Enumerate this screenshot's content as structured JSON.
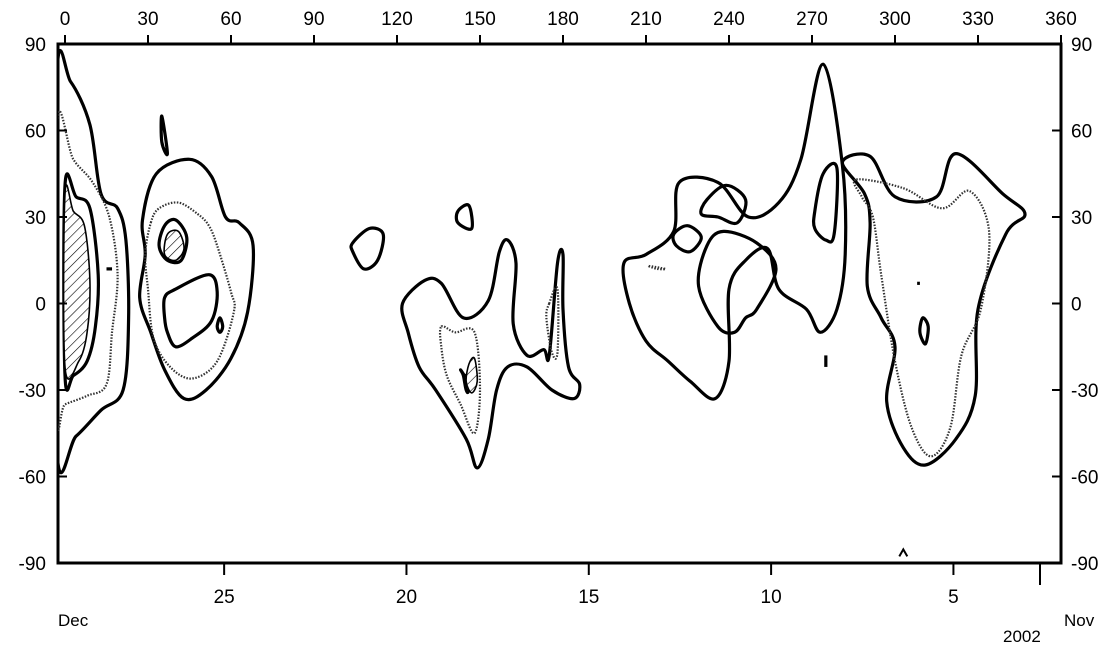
{
  "chart_data": {
    "type": "contour",
    "title": "",
    "xlabel": "",
    "ylabel": "",
    "top_axis": {
      "range": [
        0,
        360
      ],
      "ticks": [
        "0",
        "30",
        "60",
        "90",
        "120",
        "150",
        "180",
        "210",
        "240",
        "270",
        "300",
        "330",
        "360"
      ]
    },
    "left_axis": {
      "range": [
        -90,
        90
      ],
      "ticks": [
        "90",
        "60",
        "30",
        "0",
        "-30",
        "-60",
        "-90"
      ]
    },
    "right_axis": {
      "range": [
        -90,
        90
      ],
      "ticks": [
        "90",
        "60",
        "30",
        "0",
        "-30",
        "-60",
        "-90"
      ]
    },
    "bottom_axis": {
      "ticks": [
        "25",
        "20",
        "15",
        "10",
        "5"
      ],
      "left_label": "Dec",
      "right_label": "Nov",
      "year_label": "2002"
    },
    "grid": false,
    "contours": [
      {
        "id": "c1",
        "style": "solid",
        "points": [
          [
            -3,
            78
          ],
          [
            2,
            77
          ],
          [
            9,
            62
          ],
          [
            13,
            38
          ],
          [
            19,
            33
          ],
          [
            22,
            22
          ],
          [
            23,
            -5
          ],
          [
            21,
            -30
          ],
          [
            13,
            -37
          ],
          [
            4,
            -46
          ],
          [
            -3,
            -50
          ]
        ]
      },
      {
        "id": "c2",
        "style": "dotted",
        "points": [
          [
            -3,
            62
          ],
          [
            3,
            50
          ],
          [
            10,
            42
          ],
          [
            16,
            30
          ],
          [
            19,
            10
          ],
          [
            17,
            -10
          ],
          [
            15,
            -28
          ],
          [
            8,
            -32
          ],
          [
            0,
            -35
          ],
          [
            -3,
            -37
          ]
        ]
      },
      {
        "id": "c3",
        "style": "solid",
        "points": [
          [
            0,
            41
          ],
          [
            4,
            37
          ],
          [
            9,
            33
          ],
          [
            12,
            10
          ],
          [
            11,
            -8
          ],
          [
            8,
            -20
          ],
          [
            3,
            -25
          ],
          [
            0,
            -25
          ]
        ]
      },
      {
        "id": "c4",
        "style": "hatch",
        "points": [
          [
            0,
            38
          ],
          [
            3,
            32
          ],
          [
            7,
            27
          ],
          [
            9,
            8
          ],
          [
            8,
            -10
          ],
          [
            5,
            -20
          ],
          [
            0,
            -22
          ]
        ]
      },
      {
        "id": "c5",
        "style": "solid",
        "points": [
          [
            15,
            12
          ],
          [
            17,
            12
          ]
        ]
      },
      {
        "id": "c6",
        "style": "solid",
        "points": [
          [
            35,
            56
          ],
          [
            37,
            52
          ],
          [
            35,
            65
          ]
        ]
      },
      {
        "id": "c7",
        "style": "solid",
        "points": [
          [
            28,
            29
          ],
          [
            33,
            45
          ],
          [
            45,
            50
          ],
          [
            53,
            44
          ],
          [
            58,
            30
          ],
          [
            63,
            28
          ],
          [
            68,
            20
          ],
          [
            66,
            -3
          ],
          [
            60,
            -19
          ],
          [
            51,
            -30
          ],
          [
            43,
            -33
          ],
          [
            36,
            -23
          ],
          [
            31,
            -10
          ],
          [
            27,
            2
          ],
          [
            29,
            17
          ]
        ]
      },
      {
        "id": "c8",
        "style": "dotted",
        "points": [
          [
            31,
            28
          ],
          [
            34,
            33
          ],
          [
            41,
            35
          ],
          [
            48,
            31
          ],
          [
            52,
            27
          ],
          [
            55,
            20
          ],
          [
            60,
            4
          ],
          [
            61,
            -3
          ],
          [
            55,
            -20
          ],
          [
            46,
            -26
          ],
          [
            38,
            -22
          ],
          [
            32,
            -12
          ],
          [
            30,
            5
          ],
          [
            29,
            17
          ]
        ]
      },
      {
        "id": "c9",
        "style": "solid",
        "points": [
          [
            36,
            27
          ],
          [
            40,
            29
          ],
          [
            44,
            23
          ],
          [
            42,
            15
          ],
          [
            37,
            15
          ],
          [
            34,
            20
          ]
        ]
      },
      {
        "id": "c10",
        "style": "hatch",
        "points": [
          [
            37,
            24
          ],
          [
            41,
            25
          ],
          [
            43,
            19
          ],
          [
            40,
            15
          ],
          [
            36,
            17
          ]
        ]
      },
      {
        "id": "c11",
        "style": "solid",
        "points": [
          [
            36,
            2
          ],
          [
            40,
            5
          ],
          [
            52,
            10
          ],
          [
            55,
            4
          ],
          [
            53,
            -6
          ],
          [
            46,
            -12
          ],
          [
            40,
            -15
          ],
          [
            37,
            -10
          ],
          [
            36,
            -5
          ]
        ]
      },
      {
        "id": "c12",
        "style": "solid",
        "points": [
          [
            56,
            -10
          ],
          [
            57,
            -8
          ],
          [
            56,
            -5
          ],
          [
            55,
            -8
          ]
        ]
      },
      {
        "id": "c13",
        "style": "solid",
        "points": [
          [
            104,
            21
          ],
          [
            110,
            26
          ],
          [
            115,
            24
          ],
          [
            113,
            15
          ],
          [
            108,
            12
          ],
          [
            104,
            18
          ]
        ]
      },
      {
        "id": "c14",
        "style": "solid",
        "points": [
          [
            142,
            32
          ],
          [
            146,
            34
          ],
          [
            147,
            26
          ],
          [
            142,
            28
          ]
        ]
      },
      {
        "id": "c15",
        "style": "solid",
        "points": [
          [
            122,
            0
          ],
          [
            130,
            8
          ],
          [
            136,
            7
          ],
          [
            144,
            -5
          ],
          [
            153,
            1
          ],
          [
            157,
            18
          ],
          [
            160,
            22
          ],
          [
            163,
            14
          ],
          [
            162,
            -7
          ],
          [
            167,
            -18
          ],
          [
            173,
            -16
          ],
          [
            175,
            -18
          ],
          [
            178,
            14
          ],
          [
            180,
            17
          ],
          [
            180,
            -2
          ],
          [
            182,
            -22
          ],
          [
            186,
            -28
          ],
          [
            184,
            -33
          ],
          [
            176,
            -30
          ],
          [
            167,
            -22
          ],
          [
            160,
            -22
          ],
          [
            156,
            -30
          ],
          [
            153,
            -47
          ],
          [
            149,
            -57
          ],
          [
            145,
            -47
          ],
          [
            134,
            -30
          ],
          [
            128,
            -22
          ],
          [
            124,
            -10
          ]
        ]
      },
      {
        "id": "c16",
        "style": "dotted",
        "points": [
          [
            136,
            -8
          ],
          [
            141,
            -10
          ],
          [
            148,
            -10
          ],
          [
            150,
            -30
          ],
          [
            148,
            -45
          ],
          [
            143,
            -35
          ],
          [
            138,
            -25
          ],
          [
            136,
            -15
          ]
        ]
      },
      {
        "id": "c17",
        "style": "solid",
        "points": [
          [
            143,
            -23
          ],
          [
            145,
            -25
          ],
          [
            148,
            -21
          ],
          [
            146,
            -30
          ],
          [
            145,
            -30
          ],
          [
            144,
            -25
          ]
        ]
      },
      {
        "id": "c18",
        "style": "hatch",
        "points": [
          [
            146,
            -21
          ],
          [
            148,
            -19
          ],
          [
            149,
            -27
          ],
          [
            147,
            -31
          ],
          [
            145,
            -27
          ]
        ]
      },
      {
        "id": "c19",
        "style": "dotted",
        "points": [
          [
            175,
            0
          ],
          [
            178,
            5
          ],
          [
            178,
            -17
          ],
          [
            176,
            -17
          ],
          [
            174,
            -5
          ]
        ]
      },
      {
        "id": "c20",
        "style": "solid",
        "points": [
          [
            202,
            14
          ],
          [
            210,
            17
          ],
          [
            220,
            25
          ],
          [
            222,
            42
          ],
          [
            236,
            42
          ],
          [
            247,
            30
          ],
          [
            258,
            35
          ],
          [
            266,
            50
          ],
          [
            274,
            83
          ],
          [
            281,
            48
          ],
          [
            282,
            17
          ],
          [
            279,
            -2
          ],
          [
            273,
            -10
          ],
          [
            268,
            -2
          ],
          [
            258,
            5
          ],
          [
            254,
            19
          ],
          [
            246,
            15
          ],
          [
            240,
            5
          ],
          [
            240,
            -20
          ],
          [
            235,
            -33
          ],
          [
            226,
            -27
          ],
          [
            218,
            -20
          ],
          [
            210,
            -13
          ],
          [
            204,
            0
          ]
        ]
      },
      {
        "id": "c21",
        "style": "solid",
        "points": [
          [
            246,
            -5
          ],
          [
            250,
            -2
          ],
          [
            257,
            12
          ],
          [
            250,
            21
          ],
          [
            238,
            25
          ],
          [
            232,
            20
          ],
          [
            229,
            6
          ],
          [
            236,
            -8
          ],
          [
            242,
            -10
          ]
        ]
      },
      {
        "id": "c22",
        "style": "solid",
        "points": [
          [
            232,
            36
          ],
          [
            239,
            41
          ],
          [
            246,
            36
          ],
          [
            243,
            28
          ],
          [
            236,
            30
          ],
          [
            230,
            31
          ]
        ]
      },
      {
        "id": "c23",
        "style": "solid",
        "points": [
          [
            220,
            24
          ],
          [
            225,
            27
          ],
          [
            230,
            23
          ],
          [
            226,
            18
          ],
          [
            221,
            20
          ]
        ]
      },
      {
        "id": "c24",
        "style": "dotted",
        "points": [
          [
            211,
            13
          ],
          [
            217,
            12
          ],
          [
            214,
            12
          ]
        ]
      },
      {
        "id": "c25",
        "style": "solid",
        "points": [
          [
            271,
            32
          ],
          [
            274,
            45
          ],
          [
            279,
            47
          ],
          [
            278,
            24
          ],
          [
            275,
            22
          ],
          [
            271,
            26
          ]
        ]
      },
      {
        "id": "c26",
        "style": "solid",
        "points": [
          [
            275,
            -18
          ],
          [
            275,
            -22
          ]
        ]
      },
      {
        "id": "c27",
        "style": "solid",
        "points": [
          [
            281,
            49
          ],
          [
            291,
            51
          ],
          [
            300,
            37
          ],
          [
            315,
            37
          ],
          [
            322,
            52
          ],
          [
            339,
            38
          ],
          [
            347,
            31
          ],
          [
            340,
            24
          ],
          [
            330,
            -2
          ],
          [
            329,
            -32
          ],
          [
            322,
            -47
          ],
          [
            311,
            -56
          ],
          [
            303,
            -50
          ],
          [
            297,
            -34
          ],
          [
            300,
            -15
          ],
          [
            295,
            -5
          ],
          [
            290,
            6
          ],
          [
            291,
            28
          ],
          [
            289,
            38
          ]
        ]
      },
      {
        "id": "c28",
        "style": "dotted",
        "points": [
          [
            286,
            43
          ],
          [
            303,
            40
          ],
          [
            317,
            33
          ],
          [
            327,
            39
          ],
          [
            334,
            25
          ],
          [
            331,
            -2
          ],
          [
            324,
            -18
          ],
          [
            320,
            -43
          ],
          [
            313,
            -53
          ],
          [
            306,
            -43
          ],
          [
            300,
            -20
          ],
          [
            295,
            10
          ],
          [
            292,
            30
          ],
          [
            288,
            37
          ]
        ]
      },
      {
        "id": "c29",
        "style": "solid",
        "points": [
          [
            310,
            -5
          ],
          [
            312,
            -8
          ],
          [
            311,
            -14
          ],
          [
            309,
            -10
          ]
        ]
      },
      {
        "id": "c30",
        "style": "solid",
        "points": [
          [
            308,
            7
          ],
          [
            309,
            7
          ]
        ]
      }
    ],
    "bottom_marker": {
      "x": 303,
      "y": -87
    }
  }
}
